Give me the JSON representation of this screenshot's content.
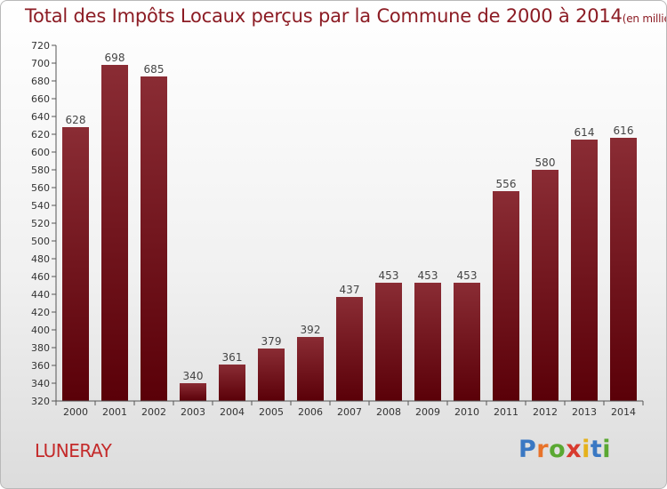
{
  "header": {
    "title": "Total des Impôts Locaux perçus par la Commune de 2000 à 2014",
    "unit": "(en milliers d'€)"
  },
  "footer": {
    "commune": "LUNERAY",
    "logo_letters": [
      "P",
      "r",
      "o",
      "x",
      "i",
      "t",
      "i"
    ],
    "logo_colors": [
      "#3a78c3",
      "#e8732a",
      "#5aa832",
      "#d83a2e",
      "#e5b21c",
      "#3a78c3",
      "#5aa832"
    ]
  },
  "chart_data": {
    "type": "bar",
    "title": "Total des Impôts Locaux perçus par la Commune de 2000 à 2014",
    "categories": [
      "2000",
      "2001",
      "2002",
      "2003",
      "2004",
      "2005",
      "2006",
      "2007",
      "2008",
      "2009",
      "2010",
      "2011",
      "2012",
      "2013",
      "2014"
    ],
    "values": [
      628,
      698,
      685,
      340,
      361,
      379,
      392,
      437,
      453,
      453,
      453,
      556,
      580,
      614,
      616
    ],
    "ylim": [
      320,
      720
    ],
    "yticks": [
      320,
      340,
      360,
      380,
      400,
      420,
      440,
      460,
      480,
      500,
      520,
      540,
      560,
      580,
      600,
      620,
      640,
      660,
      680,
      700,
      720
    ],
    "grid": false,
    "bar_color": "#6e1019"
  }
}
